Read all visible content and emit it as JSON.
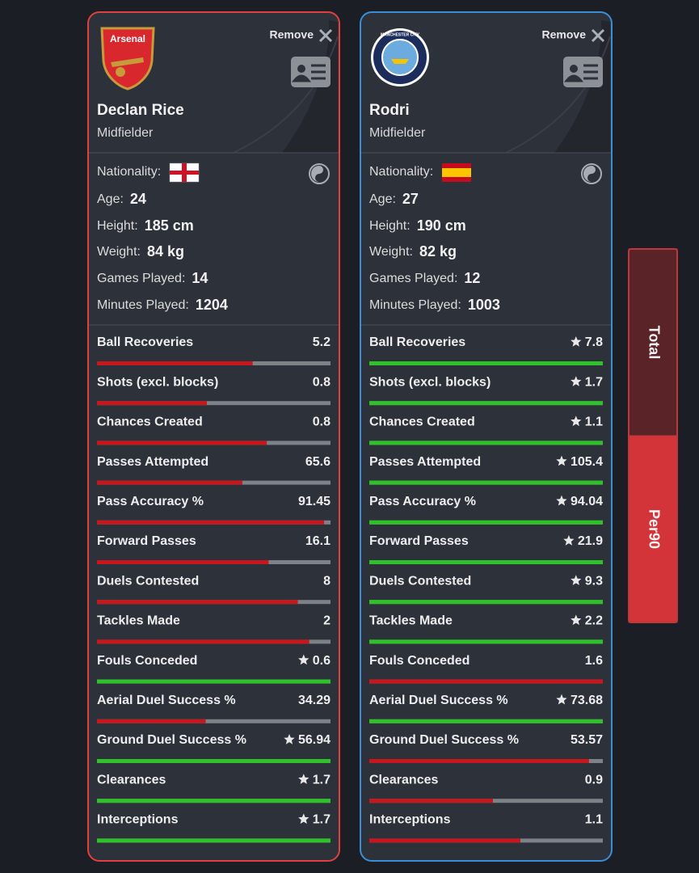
{
  "toggle": {
    "options": [
      "Total",
      "Per90"
    ],
    "selected": 1
  },
  "stat_labels": [
    "Ball Recoveries",
    "Shots (excl. blocks)",
    "Chances Created",
    "Passes Attempted",
    "Pass Accuracy %",
    "Forward Passes",
    "Duels Contested",
    "Tackles Made",
    "Fouls Conceded",
    "Aerial Duel Success %",
    "Ground Duel Success %",
    "Clearances",
    "Interceptions"
  ],
  "players": [
    {
      "border_color": "#e0403f",
      "club_badge": "arsenal",
      "badge_text": "Arsenal",
      "remove_label": "Remove",
      "name": "Declan Rice",
      "position": "Midfielder",
      "nationality_label": "Nationality:",
      "flag": "ENG",
      "info": [
        {
          "label": "Age:",
          "value": 24
        },
        {
          "label": "Height:",
          "value": "185 cm"
        },
        {
          "label": "Weight:",
          "value": "84 kg"
        },
        {
          "label": "Games Played:",
          "value": 14
        },
        {
          "label": "Minutes Played:",
          "value": 1204
        }
      ],
      "values": [
        5.2,
        0.8,
        0.8,
        65.6,
        91.45,
        16.1,
        8,
        2,
        0.6,
        34.29,
        56.94,
        1.7,
        1.7
      ],
      "best": [
        false,
        false,
        false,
        false,
        false,
        false,
        false,
        false,
        true,
        false,
        true,
        true,
        true
      ]
    },
    {
      "border_color": "#3a8ed6",
      "club_badge": "mancity",
      "badge_text": "MANCHESTER CITY",
      "remove_label": "Remove",
      "name": "Rodri",
      "position": "Midfielder",
      "nationality_label": "Nationality:",
      "flag": "ESP",
      "info": [
        {
          "label": "Age:",
          "value": 27
        },
        {
          "label": "Height:",
          "value": "190 cm"
        },
        {
          "label": "Weight:",
          "value": "82 kg"
        },
        {
          "label": "Games Played:",
          "value": 12
        },
        {
          "label": "Minutes Played:",
          "value": 1003
        }
      ],
      "values": [
        7.8,
        1.7,
        1.1,
        105.4,
        94.04,
        21.9,
        9.3,
        2.2,
        1.6,
        73.68,
        53.57,
        0.9,
        1.1
      ],
      "best": [
        true,
        true,
        true,
        true,
        true,
        true,
        true,
        true,
        false,
        true,
        false,
        false,
        false
      ]
    }
  ]
}
